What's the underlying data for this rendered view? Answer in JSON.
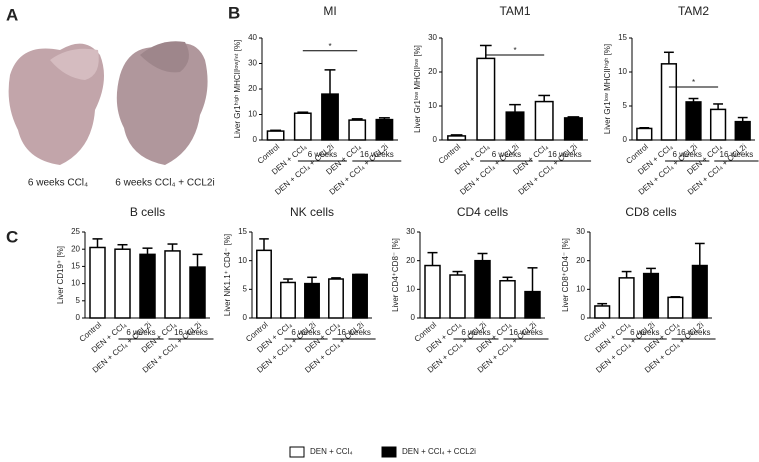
{
  "panel_labels": [
    "A",
    "B",
    "C"
  ],
  "photo_captions": [
    "6 weeks CCl₄",
    "6 weeks CCl₄ + CCL2i"
  ],
  "legend": [
    {
      "name": "DEN + CCl₄",
      "color": "#ffffff"
    },
    {
      "name": "DEN + CCl₄ + CCL2i",
      "color": "#000000"
    }
  ],
  "chart_data": [
    {
      "type": "bar",
      "title": "MI",
      "ylabel": "Liver Gr1ʰⁱᵍʰ MHCIIˡᵒʷ/ⁱⁿᵗ [%]",
      "categories": [
        "Control",
        "DEN + CCl₄",
        "DEN + CCl₄ + CCL2i",
        "DEN + CCl₄",
        "DEN + CCl₄ + CCL2i"
      ],
      "values": [
        3.5,
        10.5,
        18,
        7.8,
        8
      ],
      "errors": [
        0.3,
        0.4,
        9.5,
        0.5,
        0.7
      ],
      "colors": [
        "#ffffff",
        "#ffffff",
        "#000000",
        "#ffffff",
        "#000000"
      ],
      "groups": [
        {
          "label": "6 weeks",
          "span": [
            1,
            2
          ]
        },
        {
          "label": "16 weeks",
          "span": [
            3,
            4
          ]
        }
      ],
      "significance": {
        "label": "*",
        "span": [
          1,
          3
        ],
        "y": 35
      },
      "ylim": [
        0,
        40
      ],
      "yticks": [
        0,
        10,
        20,
        30,
        40
      ]
    },
    {
      "type": "bar",
      "title": "TAM1",
      "ylabel": "Liver Gr1ˡᵒʷ MHCIIˡᵒʷ [%]",
      "categories": [
        "Control",
        "DEN + CCl₄",
        "DEN + CCl₄ + CCL2i",
        "DEN + CCl₄",
        "DEN + CCl₄ + CCL2i"
      ],
      "values": [
        1.2,
        24,
        8.2,
        11.3,
        6.5
      ],
      "errors": [
        0.3,
        3.8,
        2.2,
        1.8,
        0.3
      ],
      "colors": [
        "#ffffff",
        "#ffffff",
        "#000000",
        "#ffffff",
        "#000000"
      ],
      "groups": [
        {
          "label": "6 weeks",
          "span": [
            1,
            2
          ]
        },
        {
          "label": "16 weeks",
          "span": [
            3,
            4
          ]
        }
      ],
      "significance": {
        "label": "*",
        "span": [
          1,
          3
        ],
        "y": 25
      },
      "ylim": [
        0,
        30
      ],
      "yticks": [
        0,
        10,
        20,
        30
      ]
    },
    {
      "type": "bar",
      "title": "TAM2",
      "ylabel": "Liver Gr1ˡᵒʷ MHCIIʰⁱᵍʰ [%]",
      "categories": [
        "Control",
        "DEN + CCl₄",
        "DEN + CCl₄ + CCL2i",
        "DEN + CCl₄",
        "DEN + CCl₄ + CCL2i"
      ],
      "values": [
        1.7,
        11.2,
        5.6,
        4.5,
        2.7
      ],
      "errors": [
        0.1,
        1.7,
        0.5,
        0.8,
        0.6
      ],
      "colors": [
        "#ffffff",
        "#ffffff",
        "#000000",
        "#ffffff",
        "#000000"
      ],
      "groups": [
        {
          "label": "6 weeks",
          "span": [
            1,
            2
          ]
        },
        {
          "label": "16 weeks",
          "span": [
            3,
            4
          ]
        }
      ],
      "significance": {
        "label": "*",
        "span": [
          1,
          3
        ],
        "y": 7.8
      },
      "ylim": [
        0,
        15
      ],
      "yticks": [
        0,
        5,
        10,
        15
      ]
    },
    {
      "type": "bar",
      "title": "B cells",
      "ylabel": "Liver CD19⁺ [%]",
      "categories": [
        "Control",
        "DEN + CCl₄",
        "DEN + CCl₄ + CCL2i",
        "DEN + CCl₄",
        "DEN + CCl₄ + CCL2i"
      ],
      "values": [
        20.5,
        20,
        18.5,
        19.5,
        14.8
      ],
      "errors": [
        2.5,
        1.3,
        1.8,
        2,
        3.7
      ],
      "colors": [
        "#ffffff",
        "#ffffff",
        "#000000",
        "#ffffff",
        "#000000"
      ],
      "groups": [
        {
          "label": "6 weeks",
          "span": [
            1,
            2
          ]
        },
        {
          "label": "16 weeks",
          "span": [
            3,
            4
          ]
        }
      ],
      "ylim": [
        0,
        25
      ],
      "yticks": [
        0,
        5,
        10,
        15,
        20,
        25
      ]
    },
    {
      "type": "bar",
      "title": "NK cells",
      "ylabel": "Liver NK1.1⁺ CD4⁻ [%]",
      "categories": [
        "Control",
        "DEN + CCl₄",
        "DEN + CCl₄ + CCL2i",
        "DEN + CCl₄",
        "DEN + CCl₄ + CCL2i"
      ],
      "values": [
        11.8,
        6.2,
        6.0,
        6.8,
        7.6
      ],
      "errors": [
        2,
        0.6,
        1.1,
        0.2,
        0
      ],
      "colors": [
        "#ffffff",
        "#ffffff",
        "#000000",
        "#ffffff",
        "#000000"
      ],
      "groups": [
        {
          "label": "6 weeks",
          "span": [
            1,
            2
          ]
        },
        {
          "label": "16 weeks",
          "span": [
            3,
            4
          ]
        }
      ],
      "ylim": [
        0,
        15
      ],
      "yticks": [
        0,
        5,
        10,
        15
      ]
    },
    {
      "type": "bar",
      "title": "CD4 cells",
      "ylabel": "Liver CD4⁺CD8⁻ [%]",
      "categories": [
        "Control",
        "DEN + CCl₄",
        "DEN + CCl₄ + CCL2i",
        "DEN + CCl₄",
        "DEN + CCl₄ + CCL2i"
      ],
      "values": [
        18.3,
        15,
        20,
        13,
        9.2
      ],
      "errors": [
        4.5,
        1.2,
        2.5,
        1.2,
        8.3
      ],
      "colors": [
        "#ffffff",
        "#ffffff",
        "#000000",
        "#ffffff",
        "#000000"
      ],
      "groups": [
        {
          "label": "6 weeks",
          "span": [
            1,
            2
          ]
        },
        {
          "label": "16 weeks",
          "span": [
            3,
            4
          ]
        }
      ],
      "ylim": [
        0,
        30
      ],
      "yticks": [
        0,
        10,
        20,
        30
      ]
    },
    {
      "type": "bar",
      "title": "CD8 cells",
      "ylabel": "Liver CD8⁺CD4⁻ [%]",
      "categories": [
        "Control",
        "DEN + CCl₄",
        "DEN + CCl₄ + CCL2i",
        "DEN + CCl₄",
        "DEN + CCl₄ + CCL2i"
      ],
      "values": [
        4.2,
        14,
        15.5,
        7.2,
        18.3
      ],
      "errors": [
        0.8,
        2.2,
        1.8,
        0.2,
        7.7
      ],
      "colors": [
        "#ffffff",
        "#ffffff",
        "#000000",
        "#ffffff",
        "#000000"
      ],
      "groups": [
        {
          "label": "6 weeks",
          "span": [
            1,
            2
          ]
        },
        {
          "label": "16 weeks",
          "span": [
            3,
            4
          ]
        }
      ],
      "ylim": [
        0,
        30
      ],
      "yticks": [
        0,
        10,
        20,
        30
      ]
    }
  ]
}
